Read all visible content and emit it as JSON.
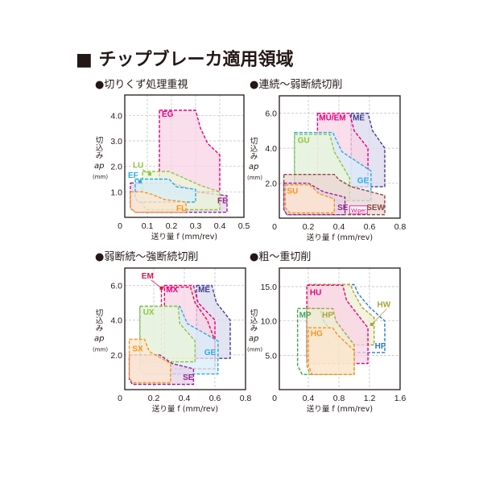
{
  "title": "■ チップブレーカ適用領域",
  "colors": {
    "pink": "#e4007f",
    "pink_fill": "#fad3e6",
    "green": "#8dc63f",
    "green_fill": "#e9f4d8",
    "blue": "#29abe2",
    "blue_fill": "#d8eefa",
    "orange": "#f7931e",
    "orange_fill": "#fde6cc",
    "purple": "#93278f",
    "purple_fill": "#e6d2e8",
    "navy": "#3f3f8f",
    "navy_fill": "#d9d9ec",
    "brown": "#8b4a42",
    "brown_fill": "#ecd6d1",
    "red": "#d7144a",
    "hf_blue": "#2a7bc4",
    "hf_fill": "#d8e6f5",
    "olive": "#a8a43a",
    "olive_fill": "#eeefd4",
    "mp_green": "#3aa64a",
    "mp_fill": "#d5eed8"
  },
  "chart_data": [
    {
      "type": "area",
      "title": "●切りくず処理重視",
      "xlabel": "送り量 f (mm/rev)",
      "ylabel": "切込み",
      "ylabel_sym": "ap",
      "ylabel_unit": "(mm)",
      "xlim": [
        0,
        0.5
      ],
      "ylim": [
        0,
        4.8
      ],
      "grid": true,
      "xticks": [
        "0",
        "0.1",
        "0.2",
        "0.3",
        "0.4",
        "0.5"
      ],
      "xtick_values": [
        0,
        0.1,
        0.2,
        0.3,
        0.4,
        0.5
      ],
      "yticks": [
        "1.0",
        "2.0",
        "3.0",
        "4.0"
      ],
      "ytick_values": [
        1,
        2,
        3,
        4
      ],
      "regions": [
        {
          "name": "EG",
          "color": "pink",
          "points": [
            [
              0.15,
              4.2
            ],
            [
              0.3,
              4.2
            ],
            [
              0.32,
              3.5
            ],
            [
              0.35,
              2.9
            ],
            [
              0.4,
              2.45
            ],
            [
              0.4,
              1.0
            ],
            [
              0.17,
              1.0
            ],
            [
              0.15,
              1.2
            ]
          ]
        },
        {
          "name": "FE",
          "color": "purple",
          "points": [
            [
              0.03,
              1.35
            ],
            [
              0.2,
              1.35
            ],
            [
              0.25,
              1.2
            ],
            [
              0.3,
              1.0
            ],
            [
              0.43,
              0.85
            ],
            [
              0.43,
              0.2
            ],
            [
              0.05,
              0.2
            ],
            [
              0.03,
              0.4
            ]
          ]
        },
        {
          "name": "LU",
          "color": "green",
          "points": [
            [
              0.08,
              1.8
            ],
            [
              0.19,
              1.8
            ],
            [
              0.25,
              1.55
            ],
            [
              0.32,
              1.25
            ],
            [
              0.4,
              1.0
            ],
            [
              0.4,
              0.3
            ],
            [
              0.1,
              0.3
            ],
            [
              0.08,
              0.5
            ]
          ]
        },
        {
          "name": "EF",
          "color": "blue",
          "points": [
            [
              0.05,
              1.5
            ],
            [
              0.19,
              1.5
            ],
            [
              0.22,
              1.2
            ],
            [
              0.3,
              1.1
            ],
            [
              0.3,
              0.6
            ],
            [
              0.06,
              0.6
            ],
            [
              0.05,
              0.8
            ]
          ]
        },
        {
          "name": "FL",
          "color": "orange",
          "points": [
            [
              0.03,
              1.0
            ],
            [
              0.08,
              1.0
            ],
            [
              0.12,
              0.9
            ],
            [
              0.17,
              0.7
            ],
            [
              0.26,
              0.6
            ],
            [
              0.26,
              0.2
            ],
            [
              0.05,
              0.2
            ],
            [
              0.03,
              0.35
            ]
          ]
        }
      ]
    },
    {
      "type": "area",
      "title": "●連続～弱断続切削",
      "xlabel": "送り量 f (mm/rev)",
      "ylabel": "切込み",
      "ylabel_sym": "ap",
      "ylabel_unit": "(mm)",
      "xlim": [
        0,
        0.8
      ],
      "ylim": [
        0,
        7.0
      ],
      "grid": true,
      "xticks": [
        "0",
        "0.2",
        "0.4",
        "0.6",
        "0.8"
      ],
      "xtick_values": [
        0,
        0.2,
        0.4,
        0.6,
        0.8
      ],
      "yticks": [
        "2.0",
        "4.0",
        "6.0"
      ],
      "ytick_values": [
        2,
        4,
        6
      ],
      "badge": "Wiper",
      "regions": [
        {
          "name": "ME",
          "color": "navy",
          "points": [
            [
              0.48,
              6.0
            ],
            [
              0.59,
              6.0
            ],
            [
              0.62,
              5.0
            ],
            [
              0.7,
              4.0
            ],
            [
              0.7,
              1.8
            ],
            [
              0.48,
              1.8
            ]
          ]
        },
        {
          "name": "MU/EM",
          "color": "pink",
          "points": [
            [
              0.26,
              6.0
            ],
            [
              0.47,
              6.0
            ],
            [
              0.5,
              5.0
            ],
            [
              0.59,
              4.0
            ],
            [
              0.59,
              1.8
            ],
            [
              0.26,
              1.8
            ]
          ]
        },
        {
          "name": "GE",
          "color": "blue",
          "points": [
            [
              0.11,
              4.9
            ],
            [
              0.36,
              4.9
            ],
            [
              0.42,
              3.8
            ],
            [
              0.61,
              2.7
            ],
            [
              0.61,
              1.0
            ],
            [
              0.13,
              1.0
            ],
            [
              0.11,
              1.3
            ]
          ]
        },
        {
          "name": "GU",
          "color": "green",
          "points": [
            [
              0.11,
              4.8
            ],
            [
              0.34,
              4.8
            ],
            [
              0.37,
              3.8
            ],
            [
              0.47,
              2.3
            ],
            [
              0.47,
              1.0
            ],
            [
              0.11,
              1.0
            ]
          ]
        },
        {
          "name": "SEW",
          "color": "brown",
          "points": [
            [
              0.04,
              2.5
            ],
            [
              0.37,
              2.5
            ],
            [
              0.4,
              2.2
            ],
            [
              0.48,
              1.8
            ],
            [
              0.7,
              1.3
            ],
            [
              0.7,
              0.2
            ],
            [
              0.06,
              0.2
            ],
            [
              0.04,
              0.5
            ]
          ]
        },
        {
          "name": "SE",
          "color": "purple",
          "points": [
            [
              0.04,
              2.0
            ],
            [
              0.2,
              2.0
            ],
            [
              0.3,
              1.5
            ],
            [
              0.44,
              1.2
            ],
            [
              0.44,
              0.2
            ],
            [
              0.06,
              0.2
            ],
            [
              0.04,
              0.5
            ]
          ]
        },
        {
          "name": "SU",
          "color": "orange",
          "points": [
            [
              0.05,
              1.9
            ],
            [
              0.21,
              1.9
            ],
            [
              0.27,
              1.4
            ],
            [
              0.37,
              1.1
            ],
            [
              0.37,
              0.3
            ],
            [
              0.08,
              0.3
            ],
            [
              0.05,
              0.6
            ]
          ]
        }
      ]
    },
    {
      "type": "area",
      "title": "●弱断続～強断続切削",
      "xlabel": "送り量 f (mm/rev)",
      "ylabel": "切込み",
      "ylabel_sym": "ap",
      "ylabel_unit": "(mm)",
      "xlim": [
        0,
        0.8
      ],
      "ylim": [
        0,
        7.0
      ],
      "grid": true,
      "xticks": [
        "0",
        "0.2",
        "0.4",
        "0.6",
        "0.8"
      ],
      "xtick_values": [
        0,
        0.2,
        0.4,
        0.6,
        0.8
      ],
      "yticks": [
        "2.0",
        "4.0",
        "6.0"
      ],
      "ytick_values": [
        2,
        4,
        6
      ],
      "regions": [
        {
          "name": "ME",
          "color": "navy",
          "points": [
            [
              0.48,
              6.0
            ],
            [
              0.58,
              6.0
            ],
            [
              0.61,
              5.0
            ],
            [
              0.7,
              4.0
            ],
            [
              0.7,
              1.8
            ],
            [
              0.48,
              1.8
            ]
          ]
        },
        {
          "name": "MX",
          "color": "pink",
          "points": [
            [
              0.27,
              6.0
            ],
            [
              0.46,
              6.0
            ],
            [
              0.49,
              5.0
            ],
            [
              0.6,
              4.0
            ],
            [
              0.6,
              1.8
            ],
            [
              0.27,
              1.8
            ]
          ]
        },
        {
          "name": "EM",
          "color": "red",
          "points": [
            [
              0.25,
              5.9
            ],
            [
              0.44,
              5.9
            ],
            [
              0.47,
              5.0
            ],
            [
              0.55,
              4.0
            ],
            [
              0.6,
              2.8
            ],
            [
              0.6,
              1.2
            ],
            [
              0.25,
              1.2
            ]
          ]
        },
        {
          "name": "GE",
          "color": "blue",
          "points": [
            [
              0.11,
              4.8
            ],
            [
              0.37,
              4.8
            ],
            [
              0.42,
              3.8
            ],
            [
              0.62,
              2.8
            ],
            [
              0.62,
              0.9
            ],
            [
              0.13,
              0.9
            ],
            [
              0.11,
              1.2
            ]
          ]
        },
        {
          "name": "UX",
          "color": "green",
          "points": [
            [
              0.11,
              4.8
            ],
            [
              0.36,
              4.8
            ],
            [
              0.37,
              3.8
            ],
            [
              0.47,
              2.8
            ],
            [
              0.47,
              1.6
            ],
            [
              0.11,
              1.6
            ]
          ]
        },
        {
          "name": "SE",
          "color": "purple",
          "points": [
            [
              0.04,
              2.0
            ],
            [
              0.24,
              2.0
            ],
            [
              0.32,
              1.5
            ],
            [
              0.46,
              1.2
            ],
            [
              0.46,
              0.3
            ],
            [
              0.06,
              0.3
            ],
            [
              0.04,
              0.6
            ]
          ]
        },
        {
          "name": "SX",
          "color": "orange",
          "points": [
            [
              0.04,
              2.9
            ],
            [
              0.14,
              2.9
            ],
            [
              0.17,
              2.2
            ],
            [
              0.31,
              1.5
            ],
            [
              0.31,
              0.4
            ],
            [
              0.06,
              0.4
            ],
            [
              0.04,
              0.7
            ]
          ]
        }
      ]
    },
    {
      "type": "area",
      "title": "●粗～重切削",
      "xlabel": "送り量 f (mm/rev)",
      "ylabel": "切込み",
      "ylabel_sym": "ap",
      "ylabel_unit": "(mm)",
      "xlim": [
        0,
        1.6
      ],
      "ylim": [
        0,
        17.7
      ],
      "grid": true,
      "xticks": [
        "0",
        "0.4",
        "0.8",
        "1.2",
        "1.6"
      ],
      "xtick_values": [
        0,
        0.4,
        0.8,
        1.2,
        1.6
      ],
      "yticks": [
        "5.0",
        "10.0",
        "15.0"
      ],
      "ytick_values": [
        5,
        10,
        15
      ],
      "regions": [
        {
          "name": "HF",
          "color": "hf_blue",
          "points": [
            [
              0.4,
              15.3
            ],
            [
              1.0,
              15.3
            ],
            [
              1.05,
              14
            ],
            [
              1.2,
              12
            ],
            [
              1.4,
              10
            ],
            [
              1.4,
              5.4
            ],
            [
              0.4,
              5.4
            ]
          ]
        },
        {
          "name": "HW",
          "color": "olive",
          "points": [
            [
              0.4,
              15.3
            ],
            [
              0.95,
              15.3
            ],
            [
              1.0,
              14
            ],
            [
              1.1,
              12
            ],
            [
              1.26,
              10.5
            ],
            [
              1.26,
              6.5
            ],
            [
              0.4,
              6.5
            ]
          ]
        },
        {
          "name": "HU",
          "color": "pink",
          "points": [
            [
              0.38,
              15.2
            ],
            [
              0.85,
              15.2
            ],
            [
              0.9,
              13
            ],
            [
              1.18,
              9
            ],
            [
              1.18,
              3.8
            ],
            [
              0.4,
              3.8
            ],
            [
              0.38,
              4.5
            ]
          ]
        },
        {
          "name": "MP",
          "color": "mp_green",
          "points": [
            [
              0.26,
              11.8
            ],
            [
              0.55,
              11.8
            ],
            [
              0.6,
              10
            ],
            [
              0.8,
              7
            ],
            [
              0.8,
              2.2
            ],
            [
              0.32,
              2.2
            ],
            [
              0.26,
              3.5
            ]
          ]
        },
        {
          "name": "HP",
          "color": "olive",
          "points": [
            [
              0.38,
              11.8
            ],
            [
              0.72,
              11.8
            ],
            [
              0.76,
              10
            ],
            [
              1.0,
              6.5
            ],
            [
              1.0,
              2.2
            ],
            [
              0.42,
              2.2
            ],
            [
              0.38,
              3.5
            ]
          ]
        },
        {
          "name": "HG",
          "color": "orange",
          "points": [
            [
              0.4,
              9.0
            ],
            [
              0.72,
              9.0
            ],
            [
              0.78,
              8
            ],
            [
              1.0,
              5.7
            ],
            [
              1.0,
              2.2
            ],
            [
              0.45,
              2.2
            ],
            [
              0.4,
              3.5
            ]
          ]
        }
      ]
    }
  ]
}
